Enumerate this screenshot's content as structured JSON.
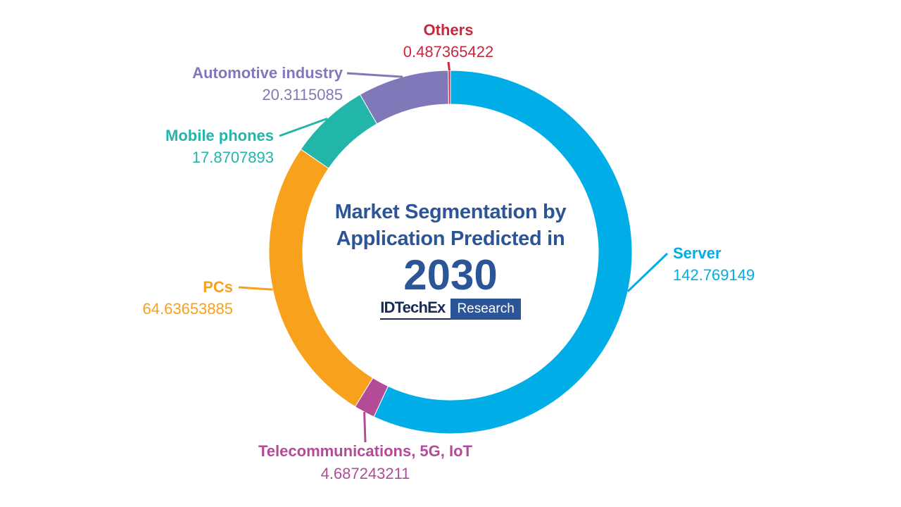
{
  "chart_data": {
    "type": "pie",
    "title_lines": [
      "Market Segmentation by",
      "Application Predicted in"
    ],
    "year": "2030",
    "categories": [
      "Server",
      "Telecommunications, 5G, IoT",
      "PCs",
      "Mobile phones",
      "Automotive industry",
      "Others"
    ],
    "values": [
      142.769149,
      4.687243211,
      64.63653885,
      17.8707893,
      20.3115085,
      0.487365422
    ],
    "value_labels": [
      "142.769149",
      "4.687243211",
      "64.63653885",
      "17.8707893",
      "20.3115085",
      "0.487365422"
    ],
    "colors": [
      "#00ade6",
      "#b34b97",
      "#f8a11d",
      "#22b5a9",
      "#8079b9",
      "#c9273e"
    ],
    "style": "donut",
    "start_angle": "12 o'clock",
    "direction": "clockwise",
    "legend": "none"
  },
  "logo": {
    "left": "IDTechEx",
    "right": "Research"
  }
}
